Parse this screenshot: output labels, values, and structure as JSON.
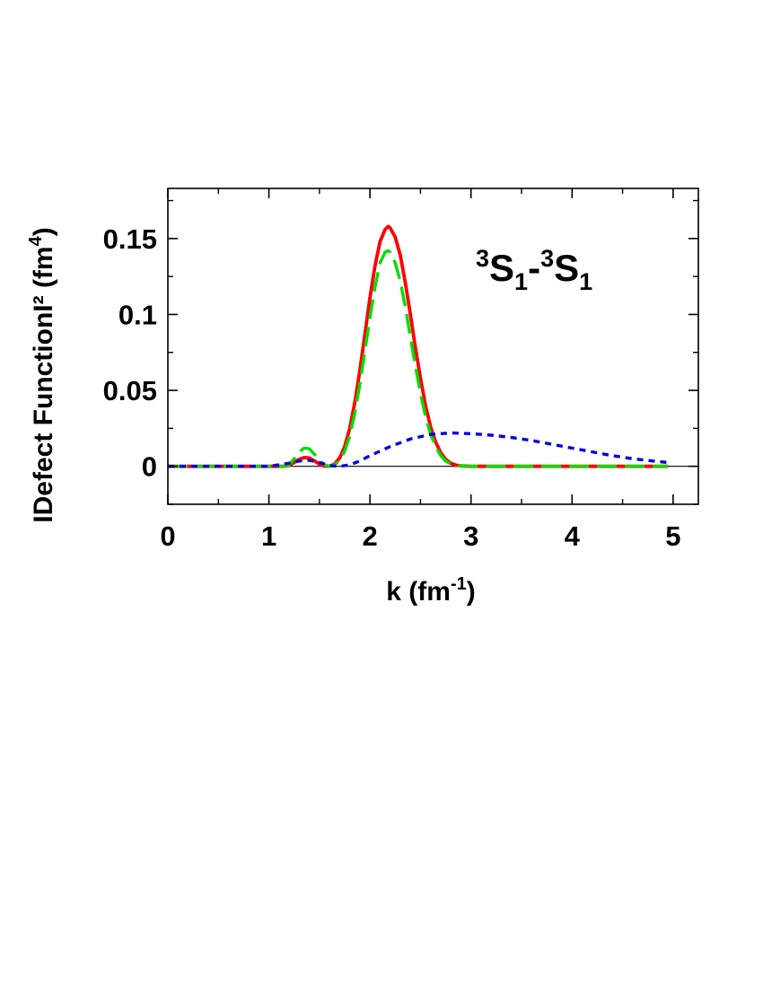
{
  "chart_data": {
    "type": "line",
    "title": "",
    "xlabel": {
      "main": "k (fm",
      "sup": "-1",
      "close": ")"
    },
    "ylabel": {
      "main": "IDefect FunctionI² (fm",
      "sup": "4",
      "close": ")"
    },
    "annotation": {
      "sup1": "3",
      "s1": "S",
      "sub1": "1",
      "dash": "-",
      "sup2": "3",
      "s2": "S",
      "sub2": "1"
    },
    "xlim": [
      0,
      5.25
    ],
    "ylim": [
      -0.025,
      0.183
    ],
    "xticks": [
      0,
      1,
      2,
      3,
      4,
      5
    ],
    "xtick_labels": [
      "0",
      "1",
      "2",
      "3",
      "4",
      "5"
    ],
    "yticks": [
      0,
      0.05,
      0.1,
      0.15
    ],
    "ytick_labels": [
      "0",
      "0.05",
      "0.1",
      "0.15"
    ],
    "zero_line": true,
    "grid": false,
    "series": [
      {
        "color": "#ff0000",
        "style": "solid",
        "x": [
          0,
          1.0,
          1.15,
          1.2,
          1.25,
          1.3,
          1.35,
          1.4,
          1.45,
          1.5,
          1.55,
          1.6,
          1.65,
          1.7,
          1.75,
          1.8,
          1.85,
          1.9,
          1.95,
          2.0,
          2.05,
          2.1,
          2.15,
          2.18,
          2.2,
          2.25,
          2.3,
          2.35,
          2.4,
          2.45,
          2.5,
          2.55,
          2.6,
          2.65,
          2.7,
          2.75,
          2.8,
          2.85,
          2.9,
          3.0,
          3.2,
          4.0,
          4.95
        ],
        "y": [
          0,
          0,
          0,
          0.0006,
          0.0025,
          0.0046,
          0.0058,
          0.0055,
          0.0036,
          0.0013,
          0.0001,
          0.0001,
          0.0015,
          0.0055,
          0.013,
          0.025,
          0.042,
          0.063,
          0.087,
          0.111,
          0.132,
          0.148,
          0.156,
          0.158,
          0.157,
          0.151,
          0.139,
          0.121,
          0.1,
          0.078,
          0.058,
          0.04,
          0.026,
          0.016,
          0.009,
          0.0045,
          0.002,
          0.0008,
          0.0003,
          0,
          0,
          0,
          0
        ]
      },
      {
        "color": "#00dd00",
        "style": "dashed",
        "x": [
          0,
          1.0,
          1.15,
          1.2,
          1.25,
          1.3,
          1.35,
          1.4,
          1.45,
          1.5,
          1.55,
          1.6,
          1.65,
          1.7,
          1.75,
          1.8,
          1.85,
          1.9,
          1.95,
          2.0,
          2.05,
          2.1,
          2.15,
          2.18,
          2.2,
          2.25,
          2.3,
          2.35,
          2.4,
          2.45,
          2.5,
          2.55,
          2.6,
          2.65,
          2.7,
          2.75,
          2.8,
          2.85,
          2.9,
          3.0,
          3.2,
          4.0,
          4.95
        ],
        "y": [
          0,
          0,
          0,
          0.001,
          0.005,
          0.0095,
          0.012,
          0.0115,
          0.008,
          0.004,
          0.001,
          0.0,
          0.001,
          0.004,
          0.01,
          0.02,
          0.035,
          0.054,
          0.076,
          0.098,
          0.118,
          0.134,
          0.141,
          0.142,
          0.141,
          0.134,
          0.122,
          0.105,
          0.085,
          0.066,
          0.048,
          0.033,
          0.021,
          0.013,
          0.007,
          0.0035,
          0.0015,
          0.0006,
          0.0002,
          0,
          0,
          0,
          0
        ]
      },
      {
        "color": "#0000dd",
        "style": "dotted",
        "x": [
          0,
          1.0,
          1.2,
          1.3,
          1.4,
          1.5,
          1.6,
          1.7,
          1.8,
          1.9,
          2.0,
          2.2,
          2.4,
          2.6,
          2.8,
          3.0,
          3.2,
          3.4,
          3.6,
          3.8,
          4.0,
          4.2,
          4.4,
          4.6,
          4.8,
          4.95
        ],
        "y": [
          0,
          0,
          0.002,
          0.0035,
          0.004,
          0.0025,
          0.0005,
          0,
          0.001,
          0.0035,
          0.007,
          0.013,
          0.018,
          0.021,
          0.022,
          0.0215,
          0.0205,
          0.019,
          0.017,
          0.0145,
          0.012,
          0.0095,
          0.007,
          0.005,
          0.0035,
          0.0025
        ]
      }
    ]
  }
}
